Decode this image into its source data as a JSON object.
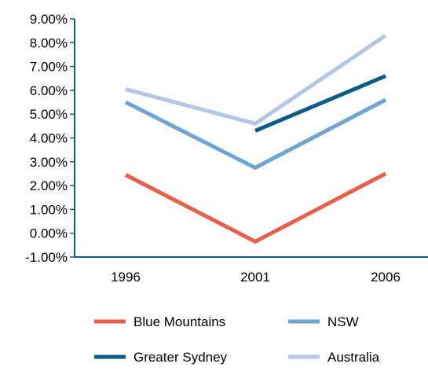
{
  "chart_data": {
    "type": "line",
    "categories": [
      "1996",
      "2001",
      "2006"
    ],
    "series": [
      {
        "name": "Blue Mountains",
        "values": [
          2.45,
          -0.35,
          2.5
        ],
        "color": "#e8604c"
      },
      {
        "name": "NSW",
        "values": [
          5.5,
          2.75,
          5.6
        ],
        "color": "#6ea6d1"
      },
      {
        "name": "Greater Sydney",
        "values": [
          null,
          4.3,
          6.6
        ],
        "color": "#0d5c86"
      },
      {
        "name": "Australia",
        "values": [
          6.05,
          4.6,
          8.3
        ],
        "color": "#b3c6e3"
      }
    ],
    "yticks": [
      "9.00%",
      "8.00%",
      "7.00%",
      "6.00%",
      "5.00%",
      "4.00%",
      "3.00%",
      "2.00%",
      "1.00%",
      "0.00%",
      "-1.00%"
    ],
    "ylim": [
      -1,
      9
    ],
    "ylabel": "",
    "xlabel": "",
    "title": "",
    "grid": false,
    "legend": {
      "placement": "bottom",
      "order": [
        "Blue Mountains",
        "NSW",
        "Greater Sydney",
        "Australia"
      ]
    }
  }
}
